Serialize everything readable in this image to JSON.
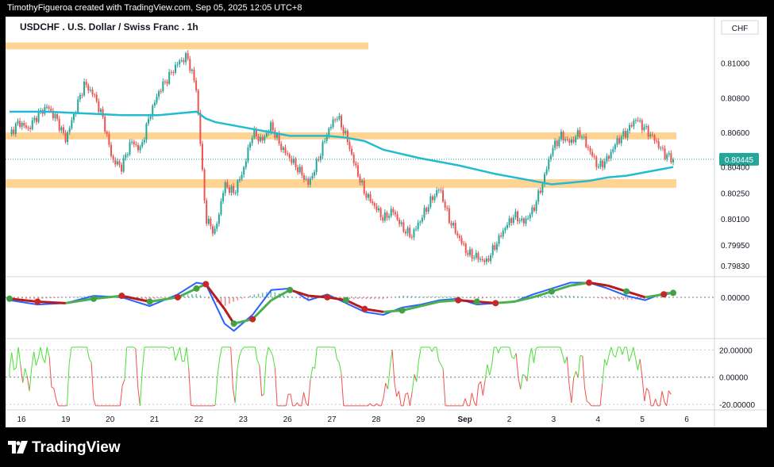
{
  "header": {
    "text": "TimothyFigueroa created with TradingView.com, Sep 05, 2025 12:05 UTC+8"
  },
  "footer": {
    "brand": "TradingView"
  },
  "chart_data": {
    "type": "candlestick",
    "title": "USDCHF . U.S. Dollar / Swiss Franc . 1h",
    "currency": "CHF",
    "last_price": "0.80445",
    "price_axis_labels": [
      "0.81000",
      "0.80800",
      "0.80600",
      "0.80400",
      "0.80250",
      "0.80100",
      "0.79950",
      "0.79830"
    ],
    "price_ticks": [
      0.81,
      0.808,
      0.806,
      0.804,
      0.8025,
      0.801,
      0.7995,
      0.7983
    ],
    "ylim": [
      0.7978,
      0.8115
    ],
    "x_labels": [
      "16",
      "19",
      "20",
      "21",
      "22",
      "23",
      "26",
      "27",
      "28",
      "29",
      "Sep",
      "2",
      "3",
      "4",
      "5",
      "6"
    ],
    "zones": [
      {
        "name": "top-zone",
        "low": 0.8108,
        "high": 0.8112,
        "from_label": 0,
        "to_label": 8
      },
      {
        "name": "upper-resistance",
        "low": 0.8056,
        "high": 0.806,
        "from_label": 0,
        "to_label": 15
      },
      {
        "name": "lower-support",
        "low": 0.8028,
        "high": 0.8033,
        "from_label": 0,
        "to_label": 15
      }
    ],
    "close_path": [
      [
        0,
        0.8059
      ],
      [
        1,
        0.8066
      ],
      [
        2,
        0.8062
      ],
      [
        3,
        0.807
      ],
      [
        4,
        0.8075
      ],
      [
        5,
        0.8068
      ],
      [
        6,
        0.8056
      ],
      [
        7,
        0.8072
      ],
      [
        8,
        0.8088
      ],
      [
        9,
        0.8082
      ],
      [
        10,
        0.8068
      ],
      [
        11,
        0.8044
      ],
      [
        12,
        0.804
      ],
      [
        13,
        0.8055
      ],
      [
        14,
        0.805
      ],
      [
        15,
        0.807
      ],
      [
        16,
        0.8084
      ],
      [
        17,
        0.8092
      ],
      [
        18,
        0.81
      ],
      [
        19,
        0.8104
      ],
      [
        20,
        0.8085
      ],
      [
        21,
        0.801
      ],
      [
        22,
        0.8002
      ],
      [
        23,
        0.803
      ],
      [
        24,
        0.8025
      ],
      [
        25,
        0.8038
      ],
      [
        26,
        0.806
      ],
      [
        27,
        0.8055
      ],
      [
        28,
        0.8064
      ],
      [
        29,
        0.8052
      ],
      [
        30,
        0.8045
      ],
      [
        31,
        0.8038
      ],
      [
        32,
        0.803
      ],
      [
        33,
        0.8044
      ],
      [
        34,
        0.806
      ],
      [
        35,
        0.807
      ],
      [
        36,
        0.8058
      ],
      [
        37,
        0.804
      ],
      [
        38,
        0.8025
      ],
      [
        39,
        0.8018
      ],
      [
        40,
        0.801
      ],
      [
        41,
        0.8015
      ],
      [
        42,
        0.8005
      ],
      [
        43,
        0.8
      ],
      [
        44,
        0.801
      ],
      [
        45,
        0.802
      ],
      [
        46,
        0.8028
      ],
      [
        47,
        0.801
      ],
      [
        48,
        0.8
      ],
      [
        49,
        0.799
      ],
      [
        50,
        0.7988
      ],
      [
        51,
        0.7985
      ],
      [
        52,
        0.7995
      ],
      [
        53,
        0.8005
      ],
      [
        54,
        0.8012
      ],
      [
        55,
        0.8008
      ],
      [
        56,
        0.8015
      ],
      [
        57,
        0.803
      ],
      [
        58,
        0.805
      ],
      [
        59,
        0.8058
      ],
      [
        60,
        0.8054
      ],
      [
        61,
        0.806
      ],
      [
        62,
        0.805
      ],
      [
        63,
        0.804
      ],
      [
        64,
        0.8045
      ],
      [
        65,
        0.8055
      ],
      [
        66,
        0.806
      ],
      [
        67,
        0.8068
      ],
      [
        68,
        0.8062
      ],
      [
        69,
        0.8056
      ],
      [
        70,
        0.8048
      ],
      [
        71,
        0.8044
      ]
    ],
    "moving_average": [
      [
        0,
        0.8072
      ],
      [
        4,
        0.8072
      ],
      [
        8,
        0.8071
      ],
      [
        12,
        0.807
      ],
      [
        16,
        0.807
      ],
      [
        18,
        0.8071
      ],
      [
        20,
        0.8072
      ],
      [
        21,
        0.8068
      ],
      [
        22,
        0.8066
      ],
      [
        24,
        0.8064
      ],
      [
        26,
        0.8062
      ],
      [
        28,
        0.806
      ],
      [
        30,
        0.8058
      ],
      [
        32,
        0.8058
      ],
      [
        34,
        0.8058
      ],
      [
        36,
        0.8057
      ],
      [
        38,
        0.8055
      ],
      [
        40,
        0.805
      ],
      [
        44,
        0.8045
      ],
      [
        48,
        0.8041
      ],
      [
        52,
        0.8036
      ],
      [
        56,
        0.8032
      ],
      [
        58,
        0.803
      ],
      [
        60,
        0.8031
      ],
      [
        62,
        0.8032
      ],
      [
        64,
        0.8034
      ],
      [
        66,
        0.8035
      ],
      [
        68,
        0.8037
      ],
      [
        70,
        0.8039
      ],
      [
        71,
        0.804
      ]
    ],
    "oscillator": {
      "zero_label": "0.00000",
      "fast": [
        [
          0,
          -0.2
        ],
        [
          3,
          -0.5
        ],
        [
          6,
          -0.4
        ],
        [
          9,
          0.1
        ],
        [
          12,
          0.0
        ],
        [
          15,
          -0.6
        ],
        [
          18,
          0.2
        ],
        [
          20,
          1.0
        ],
        [
          21,
          0.9
        ],
        [
          23,
          -1.8
        ],
        [
          24,
          -2.3
        ],
        [
          26,
          -1.2
        ],
        [
          28,
          0.5
        ],
        [
          30,
          0.6
        ],
        [
          32,
          -0.2
        ],
        [
          34,
          0.2
        ],
        [
          36,
          -0.4
        ],
        [
          38,
          -1.0
        ],
        [
          40,
          -1.2
        ],
        [
          42,
          -0.7
        ],
        [
          44,
          -0.5
        ],
        [
          46,
          -0.2
        ],
        [
          48,
          -0.1
        ],
        [
          50,
          -0.5
        ],
        [
          52,
          -0.4
        ],
        [
          54,
          -0.3
        ],
        [
          56,
          0.2
        ],
        [
          58,
          0.6
        ],
        [
          60,
          1.0
        ],
        [
          62,
          1.0
        ],
        [
          64,
          0.6
        ],
        [
          66,
          0.1
        ],
        [
          68,
          -0.2
        ],
        [
          70,
          0.3
        ],
        [
          71,
          0.3
        ]
      ],
      "slow": [
        [
          0,
          -0.1
        ],
        [
          3,
          -0.3
        ],
        [
          6,
          -0.4
        ],
        [
          9,
          -0.1
        ],
        [
          12,
          0.1
        ],
        [
          15,
          -0.3
        ],
        [
          18,
          0.0
        ],
        [
          20,
          0.6
        ],
        [
          21,
          0.9
        ],
        [
          23,
          -0.8
        ],
        [
          24,
          -1.8
        ],
        [
          26,
          -1.5
        ],
        [
          28,
          -0.2
        ],
        [
          30,
          0.5
        ],
        [
          32,
          0.1
        ],
        [
          34,
          0.0
        ],
        [
          36,
          -0.2
        ],
        [
          38,
          -0.8
        ],
        [
          40,
          -1.0
        ],
        [
          42,
          -0.9
        ],
        [
          44,
          -0.6
        ],
        [
          46,
          -0.3
        ],
        [
          48,
          -0.2
        ],
        [
          50,
          -0.3
        ],
        [
          52,
          -0.4
        ],
        [
          54,
          -0.3
        ],
        [
          56,
          0.0
        ],
        [
          58,
          0.4
        ],
        [
          60,
          0.8
        ],
        [
          62,
          1.0
        ],
        [
          64,
          0.8
        ],
        [
          66,
          0.4
        ],
        [
          68,
          0.0
        ],
        [
          70,
          0.2
        ],
        [
          71,
          0.3
        ]
      ],
      "ylim": [
        -2.5,
        1.3
      ]
    },
    "rsi_like": {
      "labels": [
        "20.00000",
        "0.00000",
        "-20.00000"
      ],
      "values": [
        20,
        0,
        -20
      ],
      "ylim": [
        -24,
        26
      ]
    },
    "colors": {
      "up": "#26a69a",
      "down": "#ef5350",
      "ma": "#22bcd0",
      "zone": "#ffcc80",
      "fast": "#2962ff",
      "slow_up": "#4caf50",
      "slow_down": "#b71c1c",
      "hist_up": "#26a69a",
      "hist_down": "#ef5350",
      "osc_pos": "#4cdf39",
      "osc_neg": "#ef5350"
    }
  }
}
